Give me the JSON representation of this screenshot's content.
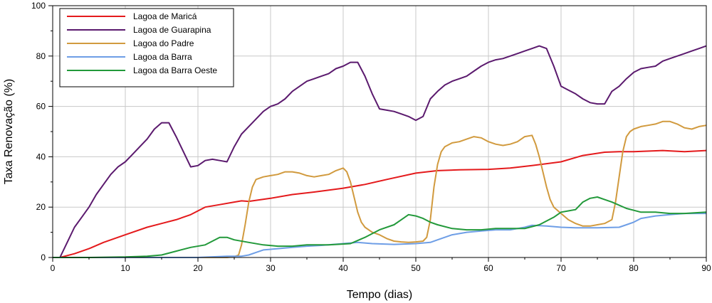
{
  "chart_data": {
    "type": "line",
    "title": "",
    "xlabel": "Tempo (dias)",
    "ylabel": "Taxa Renovação (%)",
    "xlim": [
      0,
      90
    ],
    "ylim": [
      0,
      100
    ],
    "xticks": [
      0,
      10,
      20,
      30,
      40,
      50,
      60,
      70,
      80,
      90
    ],
    "yticks": [
      0,
      20,
      40,
      60,
      80,
      100
    ],
    "grid": true,
    "legend_position": "top-left",
    "series": [
      {
        "name": "Lagoa de Maricá",
        "color": "#e41a1c",
        "points": [
          [
            0,
            0
          ],
          [
            1,
            0
          ],
          [
            3,
            1.5
          ],
          [
            5,
            3.5
          ],
          [
            7,
            6
          ],
          [
            10,
            9
          ],
          [
            13,
            12
          ],
          [
            15,
            13.5
          ],
          [
            17,
            15
          ],
          [
            19,
            17
          ],
          [
            21,
            20
          ],
          [
            23,
            21
          ],
          [
            25,
            22
          ],
          [
            26,
            22.5
          ],
          [
            27,
            22.3
          ],
          [
            30,
            23.5
          ],
          [
            33,
            25
          ],
          [
            36,
            26
          ],
          [
            40,
            27.5
          ],
          [
            43,
            29
          ],
          [
            46,
            31
          ],
          [
            50,
            33.5
          ],
          [
            53,
            34.5
          ],
          [
            56,
            34.8
          ],
          [
            60,
            35
          ],
          [
            63,
            35.5
          ],
          [
            66,
            36.5
          ],
          [
            70,
            38
          ],
          [
            73,
            40.5
          ],
          [
            76,
            41.8
          ],
          [
            78,
            42
          ],
          [
            80,
            42
          ],
          [
            84,
            42.5
          ],
          [
            87,
            42
          ],
          [
            90,
            42.5
          ]
        ]
      },
      {
        "name": "Lagoa de Guarapina",
        "color": "#5b1a6e",
        "points": [
          [
            0,
            0
          ],
          [
            1,
            0
          ],
          [
            2,
            6
          ],
          [
            3,
            12
          ],
          [
            4,
            16
          ],
          [
            5,
            20
          ],
          [
            6,
            25
          ],
          [
            7,
            29
          ],
          [
            8,
            33
          ],
          [
            9,
            36
          ],
          [
            10,
            38
          ],
          [
            11,
            41
          ],
          [
            12,
            44
          ],
          [
            13,
            47
          ],
          [
            14,
            51
          ],
          [
            15,
            53.5
          ],
          [
            16,
            53.5
          ],
          [
            17,
            48
          ],
          [
            18,
            42
          ],
          [
            19,
            36
          ],
          [
            20,
            36.5
          ],
          [
            21,
            38.5
          ],
          [
            22,
            39
          ],
          [
            23,
            38.5
          ],
          [
            24,
            38
          ],
          [
            25,
            44
          ],
          [
            26,
            49
          ],
          [
            27,
            52
          ],
          [
            28,
            55
          ],
          [
            29,
            58
          ],
          [
            30,
            60
          ],
          [
            31,
            61
          ],
          [
            32,
            63
          ],
          [
            33,
            66
          ],
          [
            34,
            68
          ],
          [
            35,
            70
          ],
          [
            36,
            71
          ],
          [
            37,
            72
          ],
          [
            38,
            73
          ],
          [
            39,
            75
          ],
          [
            40,
            76
          ],
          [
            41,
            77.5
          ],
          [
            42,
            77.5
          ],
          [
            43,
            72
          ],
          [
            44,
            65
          ],
          [
            45,
            59
          ],
          [
            46,
            58.5
          ],
          [
            47,
            58
          ],
          [
            48,
            57
          ],
          [
            49,
            56
          ],
          [
            50,
            54.5
          ],
          [
            51,
            56
          ],
          [
            52,
            63
          ],
          [
            53,
            66
          ],
          [
            54,
            68.5
          ],
          [
            55,
            70
          ],
          [
            56,
            71
          ],
          [
            57,
            72
          ],
          [
            58,
            74
          ],
          [
            59,
            76
          ],
          [
            60,
            77.5
          ],
          [
            61,
            78.5
          ],
          [
            62,
            79
          ],
          [
            63,
            80
          ],
          [
            64,
            81
          ],
          [
            65,
            82
          ],
          [
            66,
            83
          ],
          [
            67,
            84
          ],
          [
            68,
            83
          ],
          [
            69,
            76
          ],
          [
            70,
            68
          ],
          [
            71,
            66.5
          ],
          [
            72,
            65
          ],
          [
            73,
            63
          ],
          [
            74,
            61.5
          ],
          [
            75,
            61
          ],
          [
            76,
            61
          ],
          [
            77,
            66
          ],
          [
            78,
            68
          ],
          [
            79,
            71
          ],
          [
            80,
            73.5
          ],
          [
            81,
            75
          ],
          [
            82,
            75.5
          ],
          [
            83,
            76
          ],
          [
            84,
            78
          ],
          [
            85,
            79
          ],
          [
            86,
            80
          ],
          [
            87,
            81
          ],
          [
            88,
            82
          ],
          [
            89,
            83
          ],
          [
            90,
            84
          ]
        ]
      },
      {
        "name": "Lagoa do Padre",
        "color": "#d19a3e",
        "points": [
          [
            0,
            0
          ],
          [
            14,
            0
          ],
          [
            15,
            0
          ],
          [
            24,
            0
          ],
          [
            25,
            0.3
          ],
          [
            25.6,
            1
          ],
          [
            26,
            5
          ],
          [
            26.5,
            13
          ],
          [
            27,
            22
          ],
          [
            27.5,
            28
          ],
          [
            28,
            31
          ],
          [
            29,
            32
          ],
          [
            30,
            32.5
          ],
          [
            31,
            33
          ],
          [
            32,
            34
          ],
          [
            33,
            34
          ],
          [
            34,
            33.5
          ],
          [
            35,
            32.5
          ],
          [
            36,
            32
          ],
          [
            37,
            32.5
          ],
          [
            38,
            33
          ],
          [
            39,
            34.5
          ],
          [
            40,
            35.5
          ],
          [
            40.5,
            34
          ],
          [
            41,
            30
          ],
          [
            41.5,
            24
          ],
          [
            42,
            18
          ],
          [
            42.5,
            14
          ],
          [
            43,
            12
          ],
          [
            44,
            10
          ],
          [
            45,
            9
          ],
          [
            46,
            7.5
          ],
          [
            47,
            6.5
          ],
          [
            48,
            6.2
          ],
          [
            49,
            6
          ],
          [
            50,
            6.2
          ],
          [
            51,
            6.5
          ],
          [
            51.5,
            8
          ],
          [
            52,
            15
          ],
          [
            52.5,
            28
          ],
          [
            53,
            37
          ],
          [
            53.5,
            42
          ],
          [
            54,
            44
          ],
          [
            55,
            45.5
          ],
          [
            56,
            46
          ],
          [
            57,
            47
          ],
          [
            58,
            48
          ],
          [
            59,
            47.5
          ],
          [
            60,
            46
          ],
          [
            61,
            45
          ],
          [
            62,
            44.5
          ],
          [
            63,
            45
          ],
          [
            64,
            46
          ],
          [
            65,
            48
          ],
          [
            66,
            48.5
          ],
          [
            66.5,
            45
          ],
          [
            67,
            40
          ],
          [
            67.5,
            34
          ],
          [
            68,
            28
          ],
          [
            68.5,
            23
          ],
          [
            69,
            20
          ],
          [
            70,
            17.5
          ],
          [
            71,
            15
          ],
          [
            72,
            13.5
          ],
          [
            73,
            12.5
          ],
          [
            74,
            12.5
          ],
          [
            75,
            13
          ],
          [
            76,
            13.5
          ],
          [
            77,
            15
          ],
          [
            77.5,
            22
          ],
          [
            78,
            32
          ],
          [
            78.5,
            42
          ],
          [
            79,
            48
          ],
          [
            79.5,
            50
          ],
          [
            80,
            51
          ],
          [
            81,
            52
          ],
          [
            82,
            52.5
          ],
          [
            83,
            53
          ],
          [
            84,
            54
          ],
          [
            85,
            54
          ],
          [
            86,
            53
          ],
          [
            87,
            51.5
          ],
          [
            88,
            51
          ],
          [
            89,
            52
          ],
          [
            90,
            52.5
          ]
        ]
      },
      {
        "name": "Lagoa da Barra",
        "color": "#6e9ee6",
        "points": [
          [
            0,
            0
          ],
          [
            14,
            0
          ],
          [
            20,
            0
          ],
          [
            24,
            0.5
          ],
          [
            26,
            0.5
          ],
          [
            27,
            1
          ],
          [
            28,
            2
          ],
          [
            29,
            3
          ],
          [
            31,
            3.5
          ],
          [
            33,
            4
          ],
          [
            35,
            4.5
          ],
          [
            37,
            4.8
          ],
          [
            40,
            5.5
          ],
          [
            42,
            6
          ],
          [
            44,
            5.5
          ],
          [
            47,
            5.2
          ],
          [
            50,
            5.5
          ],
          [
            52,
            6
          ],
          [
            53,
            7
          ],
          [
            55,
            9
          ],
          [
            57,
            10
          ],
          [
            59,
            10.5
          ],
          [
            61,
            11
          ],
          [
            63,
            11
          ],
          [
            65,
            12
          ],
          [
            66,
            12.8
          ],
          [
            68,
            12.5
          ],
          [
            70,
            12
          ],
          [
            72,
            11.8
          ],
          [
            75,
            11.8
          ],
          [
            78,
            12
          ],
          [
            79,
            13
          ],
          [
            80,
            14
          ],
          [
            81,
            15.5
          ],
          [
            82,
            16
          ],
          [
            83,
            16.5
          ],
          [
            85,
            17
          ],
          [
            87,
            17.5
          ],
          [
            89,
            17.5
          ],
          [
            90,
            17.5
          ]
        ]
      },
      {
        "name": "Lagoa da Barra Oeste",
        "color": "#22993a",
        "points": [
          [
            0,
            0
          ],
          [
            5,
            0
          ],
          [
            10,
            0.2
          ],
          [
            13,
            0.5
          ],
          [
            15,
            1
          ],
          [
            17,
            2.5
          ],
          [
            19,
            4
          ],
          [
            21,
            5
          ],
          [
            22,
            6.5
          ],
          [
            23,
            8
          ],
          [
            24,
            8
          ],
          [
            25,
            7
          ],
          [
            27,
            6
          ],
          [
            29,
            5
          ],
          [
            31,
            4.5
          ],
          [
            33,
            4.5
          ],
          [
            35,
            5
          ],
          [
            38,
            5
          ],
          [
            41,
            5.5
          ],
          [
            43,
            8
          ],
          [
            45,
            11
          ],
          [
            47,
            13
          ],
          [
            48,
            15
          ],
          [
            49,
            17
          ],
          [
            50,
            16.5
          ],
          [
            51,
            15.5
          ],
          [
            52,
            14
          ],
          [
            53,
            13
          ],
          [
            55,
            11.5
          ],
          [
            57,
            11
          ],
          [
            59,
            11
          ],
          [
            61,
            11.5
          ],
          [
            63,
            11.5
          ],
          [
            65,
            11.5
          ],
          [
            67,
            13
          ],
          [
            69,
            16
          ],
          [
            70,
            18
          ],
          [
            71,
            18.5
          ],
          [
            72,
            19
          ],
          [
            73,
            22
          ],
          [
            74,
            23.5
          ],
          [
            75,
            24
          ],
          [
            76,
            23
          ],
          [
            77,
            22
          ],
          [
            79,
            19.5
          ],
          [
            81,
            18
          ],
          [
            83,
            18
          ],
          [
            85,
            17.5
          ],
          [
            87,
            17.5
          ],
          [
            90,
            18
          ]
        ]
      }
    ]
  }
}
